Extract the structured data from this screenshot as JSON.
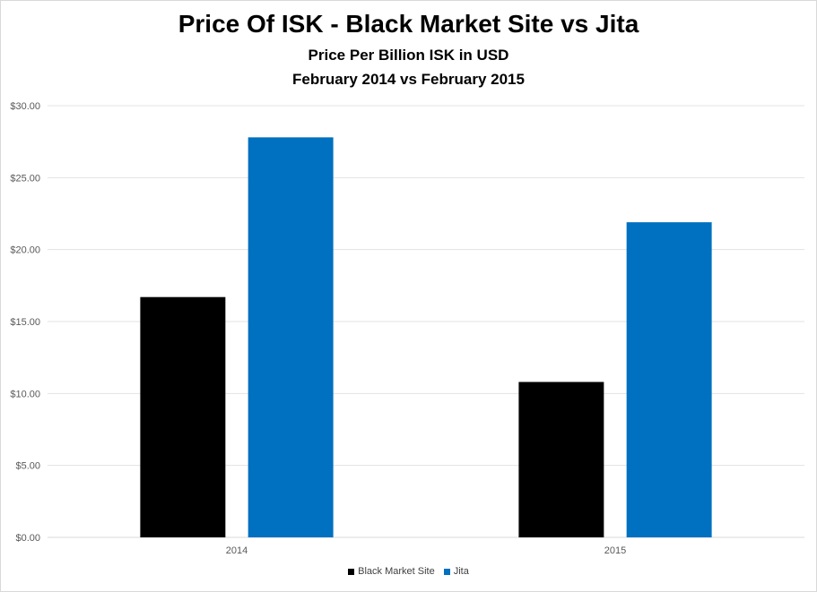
{
  "chart_data": {
    "type": "bar",
    "title": "Price Of ISK - Black Market Site vs Jita",
    "subtitle": "Price Per Billion ISK in USD",
    "subtitle2": "February 2014 vs February 2015",
    "categories": [
      "2014",
      "2015"
    ],
    "series": [
      {
        "name": "Black Market Site",
        "color": "#000000",
        "values": [
          16.7,
          10.8
        ]
      },
      {
        "name": "Jita",
        "color": "#0070c0",
        "values": [
          27.8,
          21.9
        ]
      }
    ],
    "ylim": [
      0,
      30
    ],
    "yticks": [
      {
        "value": 0,
        "label": "$0.00"
      },
      {
        "value": 5,
        "label": "$5.00"
      },
      {
        "value": 10,
        "label": "$10.00"
      },
      {
        "value": 15,
        "label": "$15.00"
      },
      {
        "value": 20,
        "label": "$20.00"
      },
      {
        "value": 25,
        "label": "$25.00"
      },
      {
        "value": 30,
        "label": "$30.00"
      }
    ],
    "grid": true,
    "legend_position": "bottom"
  }
}
